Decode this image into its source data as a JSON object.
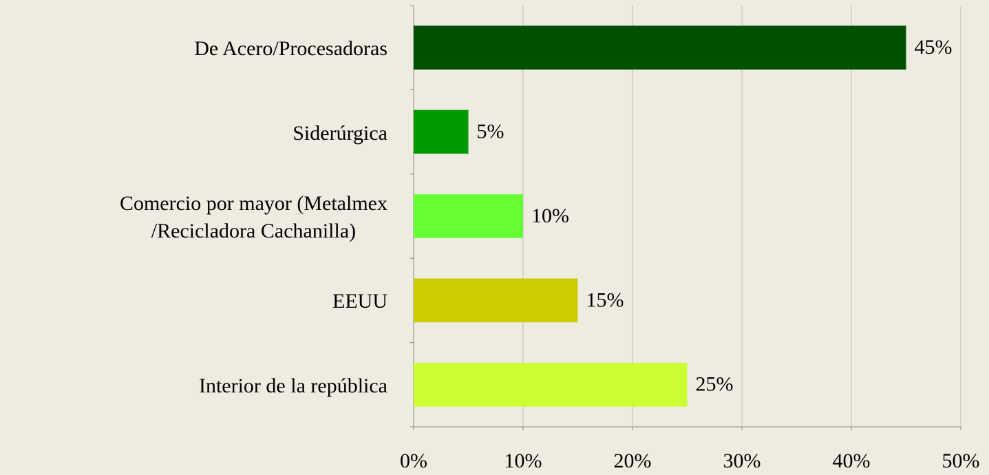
{
  "chart_data": {
    "type": "bar",
    "orientation": "horizontal",
    "categories": [
      "De Acero/Procesadoras",
      "Siderúrgica",
      "Comercio por mayor (Metalmex\n/Recicladora Cachanilla)",
      "EEUU",
      "Interior de la república"
    ],
    "values": [
      45,
      5,
      10,
      15,
      25
    ],
    "value_labels": [
      "45%",
      "5%",
      "10%",
      "15%",
      "25%"
    ],
    "colors": [
      "#005000",
      "#009900",
      "#66ff33",
      "#cccc00",
      "#ccff33"
    ],
    "xlim": [
      0,
      50
    ],
    "xticks": [
      {
        "value": 0,
        "label": "0%"
      },
      {
        "value": 10,
        "label": "10%"
      },
      {
        "value": 20,
        "label": "20%"
      },
      {
        "value": 30,
        "label": "30%"
      },
      {
        "value": 40,
        "label": "40%"
      },
      {
        "value": 50,
        "label": "50%"
      }
    ],
    "grid": true
  }
}
